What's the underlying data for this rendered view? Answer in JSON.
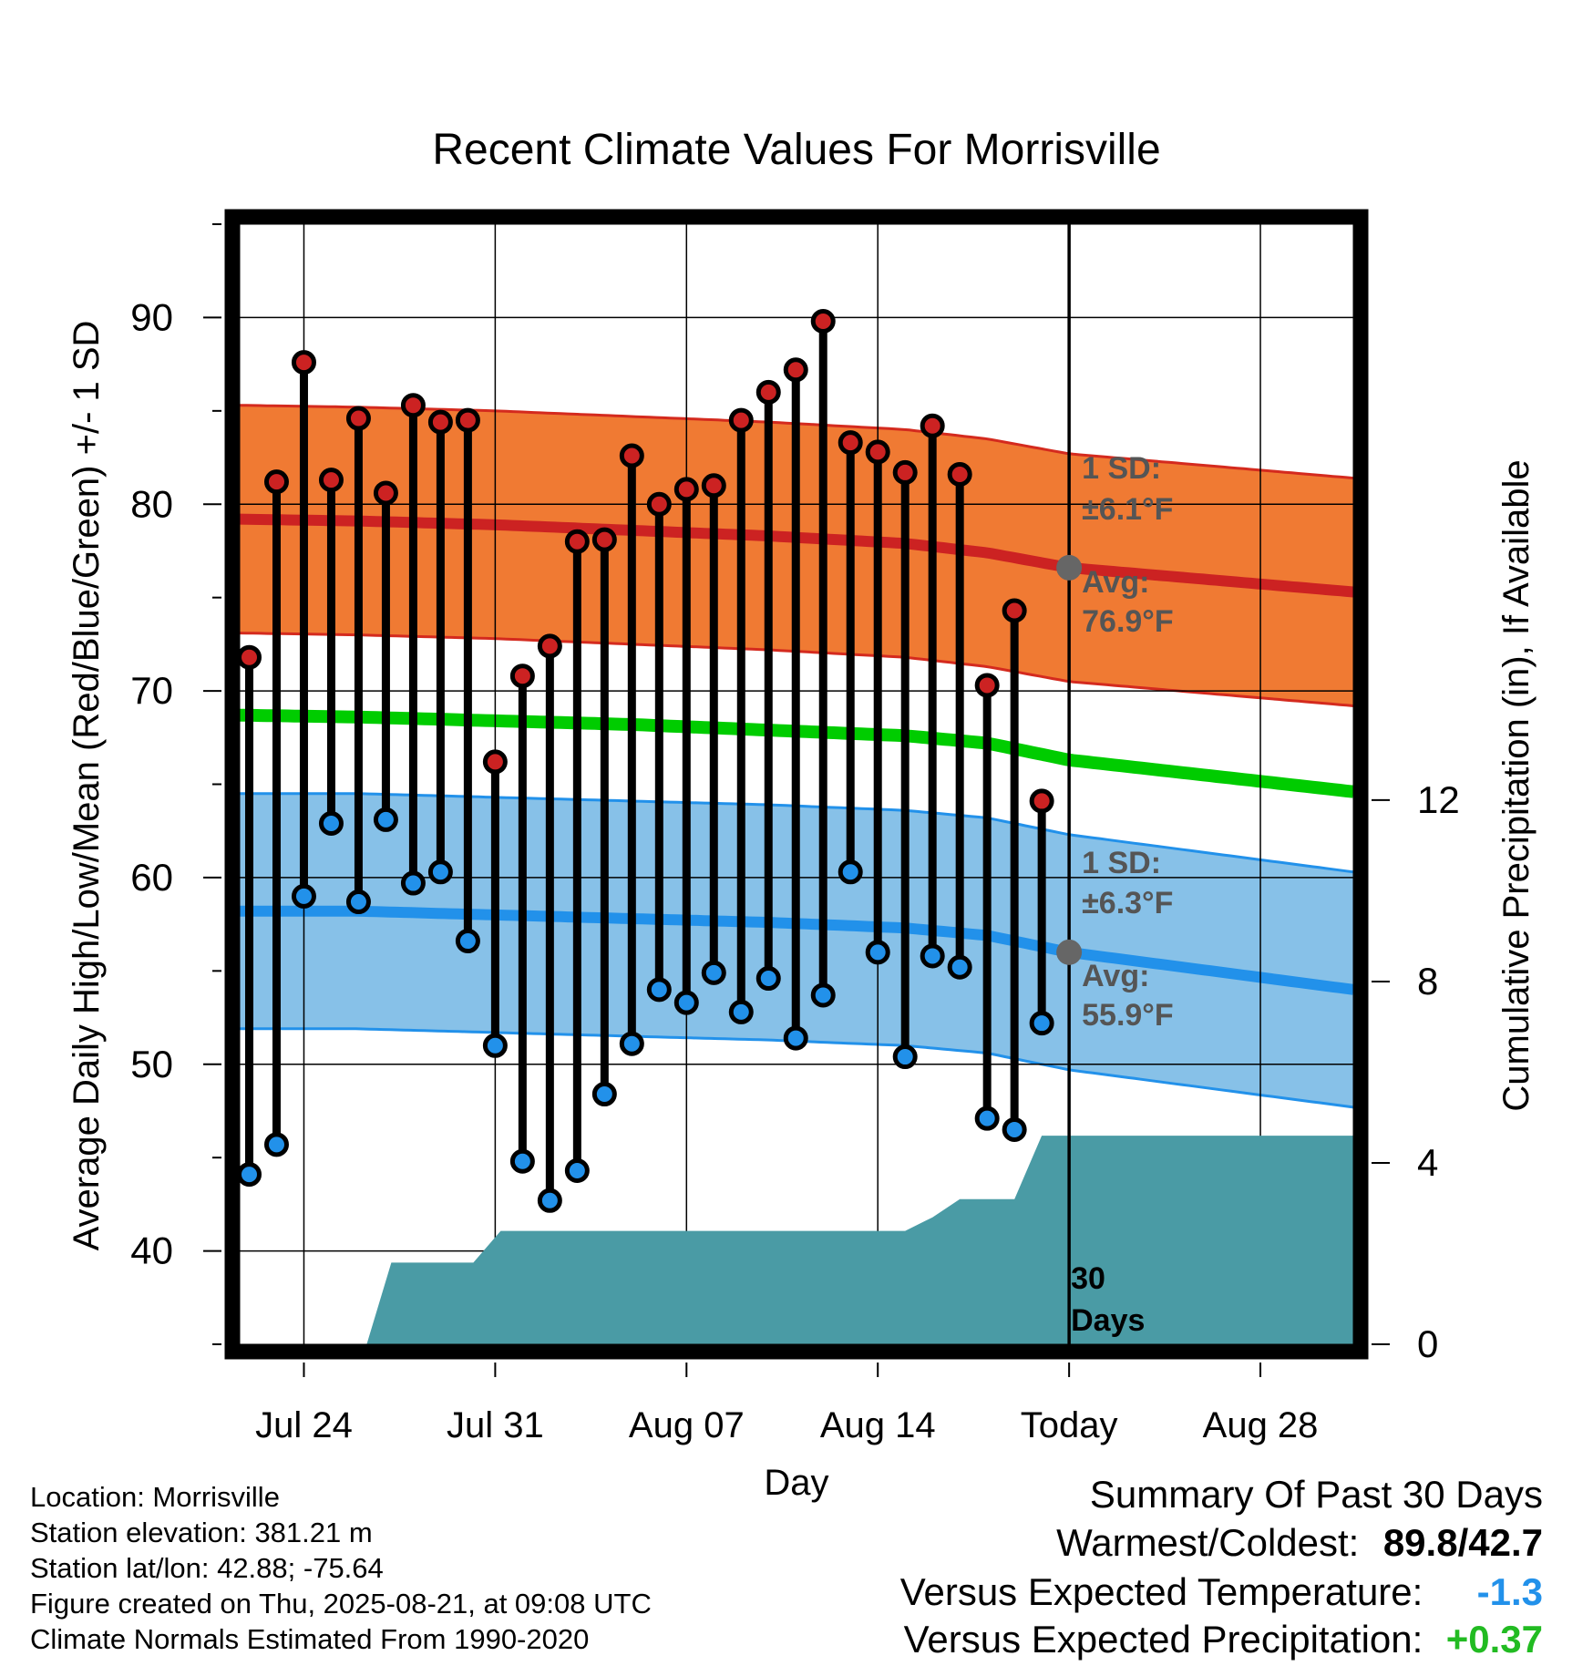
{
  "chart_data": {
    "type": "line",
    "title": "Recent Climate Values For Morrisville",
    "xlabel": "Day",
    "ylabel": "Average Daily High/Low/Mean (Red/Blue/Green) +/- 1 SD",
    "y2label": "Cumulative Precipitation (in), If Available",
    "ylim": [
      35,
      95
    ],
    "y2lim": [
      0,
      24.7
    ],
    "yticks": [
      40,
      50,
      60,
      70,
      80,
      90
    ],
    "y2ticks": [
      0,
      4,
      8,
      12
    ],
    "xlim_days_from_jul21": [
      0.65,
      41.4
    ],
    "x_ticks": [
      {
        "label": "Jul 24",
        "day": 3
      },
      {
        "label": "Jul 31",
        "day": 10
      },
      {
        "label": "Aug 07",
        "day": 17
      },
      {
        "label": "Aug 14",
        "day": 24
      },
      {
        "label": "Today",
        "day": 31
      },
      {
        "label": "Aug 28",
        "day": 38
      }
    ],
    "grid": true,
    "dates": [
      "Jul 22",
      "Jul 23",
      "Jul 24",
      "Jul 25",
      "Jul 26",
      "Jul 27",
      "Jul 28",
      "Jul 29",
      "Jul 30",
      "Jul 31",
      "Aug 01",
      "Aug 02",
      "Aug 03",
      "Aug 04",
      "Aug 05",
      "Aug 06",
      "Aug 07",
      "Aug 08",
      "Aug 09",
      "Aug 10",
      "Aug 11",
      "Aug 12",
      "Aug 13",
      "Aug 14",
      "Aug 15",
      "Aug 16",
      "Aug 17",
      "Aug 18",
      "Aug 19",
      "Aug 20"
    ],
    "highs": [
      71.8,
      81.2,
      87.6,
      81.3,
      84.6,
      80.6,
      85.3,
      84.4,
      84.5,
      66.2,
      70.8,
      72.4,
      78.0,
      78.1,
      82.6,
      80.0,
      80.8,
      81.0,
      84.5,
      86.0,
      87.2,
      89.8,
      83.3,
      82.8,
      81.7,
      84.2,
      81.6,
      70.3,
      74.3,
      64.1
    ],
    "lows": [
      44.1,
      45.7,
      59.0,
      62.9,
      58.7,
      63.1,
      59.7,
      60.3,
      56.6,
      51.0,
      44.8,
      42.7,
      44.3,
      48.4,
      51.1,
      54.0,
      53.3,
      54.9,
      52.8,
      54.6,
      51.4,
      53.7,
      60.3,
      56.0,
      50.4,
      55.8,
      55.2,
      47.1,
      46.5,
      52.2
    ],
    "normal_high": {
      "values": [
        79.2,
        79.1,
        78.9,
        78.6,
        78.3,
        77.9,
        77.4,
        76.6,
        75.3
      ],
      "sd": 6.1
    },
    "normal_low": {
      "values": [
        58.2,
        58.2,
        58.0,
        57.8,
        57.6,
        57.3,
        56.9,
        56.0,
        54.0
      ],
      "sd": 6.3
    },
    "normal_mean": [
      68.7,
      68.6,
      68.4,
      68.2,
      67.9,
      67.6,
      67.2,
      66.3,
      64.6
    ],
    "normal_grid_days": [
      0.65,
      5,
      10,
      15,
      20,
      25,
      28,
      31,
      41.4
    ],
    "precip_cumulative": [
      [
        0,
        0
      ],
      [
        5.3,
        0
      ],
      [
        6.2,
        1.8
      ],
      [
        9.2,
        1.8
      ],
      [
        10.2,
        2.5
      ],
      [
        25,
        2.5
      ],
      [
        26,
        2.8
      ],
      [
        27,
        3.2
      ],
      [
        29,
        3.2
      ],
      [
        30,
        4.6
      ],
      [
        41.4,
        4.6
      ]
    ],
    "series": [
      {
        "name": "High",
        "color": "#cc2222"
      },
      {
        "name": "Low",
        "color": "#2291ea"
      },
      {
        "name": "Mean",
        "color": "#00cc00"
      }
    ],
    "precip_color": "#4a9ba5",
    "today_day": 31,
    "annotations": {
      "high_sd_label": "1 SD:",
      "high_sd_value": "±6.1°F",
      "high_avg_label": "Avg:",
      "high_avg_value": "76.9°F",
      "low_sd_label": "1 SD:",
      "low_sd_value": "±6.3°F",
      "low_avg_label": "Avg:",
      "low_avg_value": "55.9°F",
      "days_line1": "30",
      "days_line2": "Days"
    }
  },
  "info": {
    "location": "Location: Morrisville",
    "elevation": "Station elevation: 381.21 m",
    "latlon": "Station lat/lon: 42.88; -75.64",
    "created": "Figure created on Thu, 2025-08-21, at 09:08 UTC",
    "normals": "Climate Normals Estimated From 1990-2020"
  },
  "summary": {
    "title": "Summary Of Past 30 Days",
    "warm_cold_label": "Warmest/Coldest:",
    "warmest": "89.8",
    "separator": "/",
    "coldest": "42.7",
    "temp_label": "Versus Expected Temperature:",
    "temp_value": "-1.3",
    "temp_color": "#2291ea",
    "precip_label": "Versus Expected Precipitation:",
    "precip_value": "+0.37",
    "precip_color": "#22bb22"
  }
}
